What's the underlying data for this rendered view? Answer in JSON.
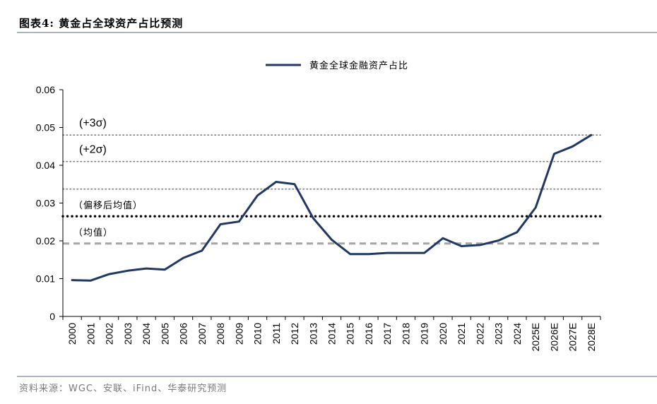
{
  "header": {
    "title": "图表4:  黄金占全球资产占比预测"
  },
  "source": {
    "text": "资料来源：WGC、安联、iFind、华泰研究预测"
  },
  "chart_data": {
    "type": "line",
    "title": "黄金占全球资产占比预测",
    "xlabel": "",
    "ylabel": "",
    "ylim": [
      0,
      0.06
    ],
    "yticks": [
      0,
      0.01,
      0.02,
      0.03,
      0.04,
      0.05,
      0.06
    ],
    "ytick_labels": [
      "0",
      "0.01",
      "0.02",
      "0.03",
      "0.04",
      "0.05",
      "0.06"
    ],
    "categories": [
      "2000",
      "2001",
      "2002",
      "2003",
      "2004",
      "2005",
      "2006",
      "2007",
      "2008",
      "2009",
      "2010",
      "2011",
      "2012",
      "2013",
      "2014",
      "2015",
      "2016",
      "2017",
      "2018",
      "2019",
      "2020",
      "2021",
      "2022",
      "2023",
      "2024",
      "2025E",
      "2026E",
      "2027E",
      "2028E"
    ],
    "series": [
      {
        "name": "黄金全球金融资产占比",
        "color": "#1f3864",
        "values": [
          0.0096,
          0.0095,
          0.0112,
          0.0121,
          0.0127,
          0.0124,
          0.0155,
          0.0174,
          0.0244,
          0.0251,
          0.032,
          0.0356,
          0.035,
          0.026,
          0.0203,
          0.0165,
          0.0165,
          0.0168,
          0.0168,
          0.0168,
          0.0207,
          0.0186,
          0.0189,
          0.0201,
          0.0223,
          0.0288,
          0.043,
          0.045,
          0.048
        ]
      }
    ],
    "reference_lines": [
      {
        "name": "+3sigma",
        "label": "(+3σ)",
        "value": 0.048,
        "style": "dotted",
        "color": "#808080"
      },
      {
        "name": "+2sigma",
        "label": "(+2σ)",
        "value": 0.041,
        "style": "dotted",
        "color": "#808080"
      },
      {
        "name": "+1sigma",
        "label": "",
        "value": 0.0337,
        "style": "dotted",
        "color": "#808080"
      },
      {
        "name": "shifted-mean",
        "label": "（偏移后均值）",
        "value": 0.0265,
        "style": "dotted-bold",
        "color": "#000000"
      },
      {
        "name": "mean",
        "label": "（均值）",
        "value": 0.0193,
        "style": "dashed",
        "color": "#a6a6a6"
      }
    ],
    "legend": {
      "position": "top-center",
      "entries": [
        "黄金全球金融资产占比"
      ]
    },
    "grid": false
  }
}
